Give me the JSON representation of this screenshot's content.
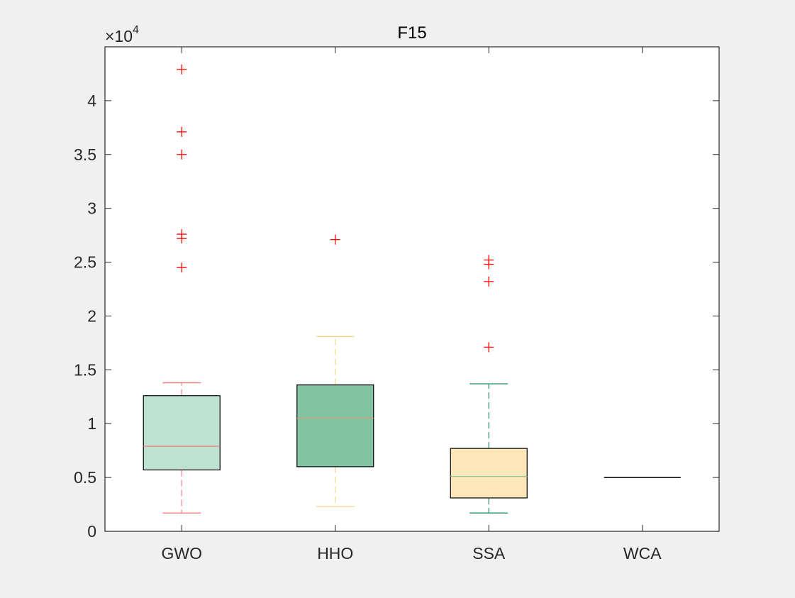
{
  "chart_data": {
    "type": "boxplot",
    "title": "F15",
    "xlabel": "",
    "ylabel": "",
    "exponent_label": "×10",
    "exponent_power": "4",
    "ylim": [
      0,
      45000
    ],
    "yticks": [
      0,
      5000,
      10000,
      15000,
      20000,
      25000,
      30000,
      35000,
      40000
    ],
    "ytick_labels": [
      "0",
      "0.5",
      "1",
      "1.5",
      "2",
      "2.5",
      "3",
      "3.5",
      "4"
    ],
    "categories": [
      "GWO",
      "HHO",
      "SSA",
      "WCA"
    ],
    "series": [
      {
        "name": "GWO",
        "q1": 5700,
        "median": 7900,
        "q3": 12600,
        "whisker_low": 1700,
        "whisker_high": 13800,
        "outliers": [
          42900,
          37100,
          35000,
          27600,
          27200,
          24500
        ],
        "fill": "#bfe1d2",
        "median_color": "#e8807a",
        "whisker_color": "#f08080"
      },
      {
        "name": "HHO",
        "q1": 6000,
        "median": 10500,
        "q3": 13600,
        "whisker_low": 2300,
        "whisker_high": 18100,
        "outliers": [
          27100
        ],
        "fill": "#80c2a2",
        "median_color": "#d7a06a",
        "whisker_color": "#f5d88a"
      },
      {
        "name": "SSA",
        "q1": 3100,
        "median": 5100,
        "q3": 7700,
        "whisker_low": 1700,
        "whisker_high": 13700,
        "outliers": [
          25200,
          24800,
          23200,
          17100
        ],
        "fill": "#fde7b8",
        "median_color": "#88c8a0",
        "whisker_color": "#2a9070"
      },
      {
        "name": "WCA",
        "q1": 5000,
        "median": 5000,
        "q3": 5000,
        "whisker_low": 5000,
        "whisker_high": 5000,
        "outliers": [],
        "fill": "#ffffff",
        "median_color": "#000000",
        "whisker_color": "#000000"
      }
    ],
    "outlier_color": "#ff0000"
  }
}
